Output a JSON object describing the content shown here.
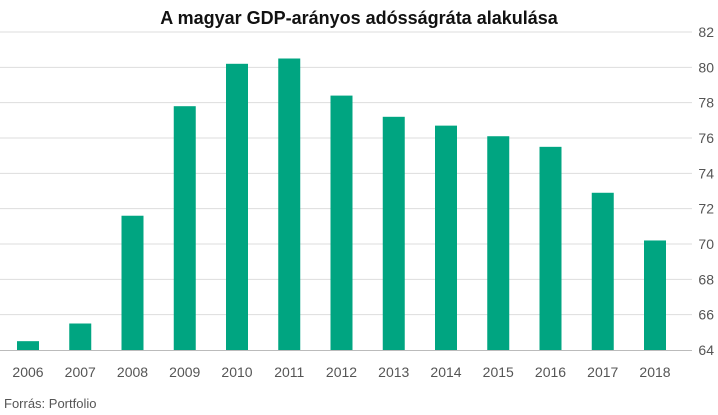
{
  "chart_data": {
    "type": "bar",
    "title": "A magyar GDP-arányos adósságráta alakulása",
    "source": "Forrás: Portfolio",
    "categories": [
      "2006",
      "2007",
      "2008",
      "2009",
      "2010",
      "2011",
      "2012",
      "2013",
      "2014",
      "2015",
      "2016",
      "2017",
      "2018"
    ],
    "values": [
      64.5,
      65.5,
      71.6,
      77.8,
      80.2,
      80.5,
      78.4,
      77.2,
      76.7,
      76.1,
      75.5,
      72.9,
      70.2
    ],
    "ylim": [
      64,
      82
    ],
    "yticks": [
      64,
      66,
      68,
      70,
      72,
      74,
      76,
      78,
      80,
      82
    ],
    "y_axis_position": "right",
    "grid": true,
    "colors": {
      "bar": "#00a581",
      "grid": "#dddddd",
      "baseline": "#bbbbbb",
      "text": "#555555",
      "title": "#111111"
    }
  }
}
